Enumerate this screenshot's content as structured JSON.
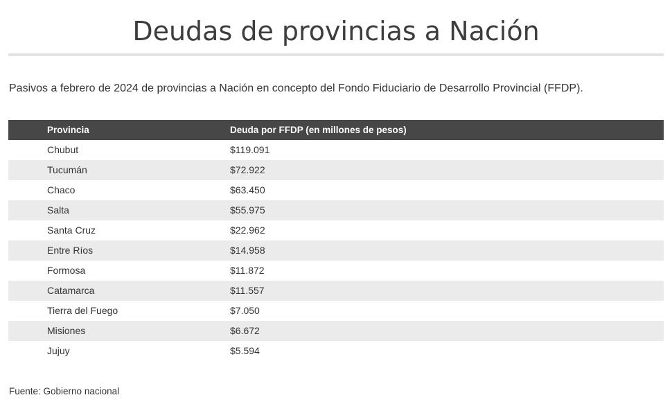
{
  "title": "Deudas de provincias a Nación",
  "subtitle": "Pasivos a febrero de 2024 de provincias a Nación en concepto del Fondo Fiduciario de Desarrollo Provincial (FFDP).",
  "source": "Fuente: Gobierno nacional",
  "colors": {
    "header_bg": "#474747",
    "stripe_bg": "#ebebeb",
    "text": "#333333"
  },
  "chart_data": {
    "type": "table",
    "columns": [
      "Provincia",
      "Deuda por FFDP (en millones de pesos)"
    ],
    "rows": [
      [
        "Chubut",
        "$119.091"
      ],
      [
        "Tucumán",
        "$72.922"
      ],
      [
        "Chaco",
        "$63.450"
      ],
      [
        "Salta",
        "$55.975"
      ],
      [
        "Santa Cruz",
        "$22.962"
      ],
      [
        "Entre Ríos",
        "$14.958"
      ],
      [
        "Formosa",
        "$11.872"
      ],
      [
        "Catamarca",
        "$11.557"
      ],
      [
        "Tierra del Fuego",
        "$7.050"
      ],
      [
        "Misiones",
        "$6.672"
      ],
      [
        "Jujuy",
        "$5.594"
      ]
    ]
  }
}
